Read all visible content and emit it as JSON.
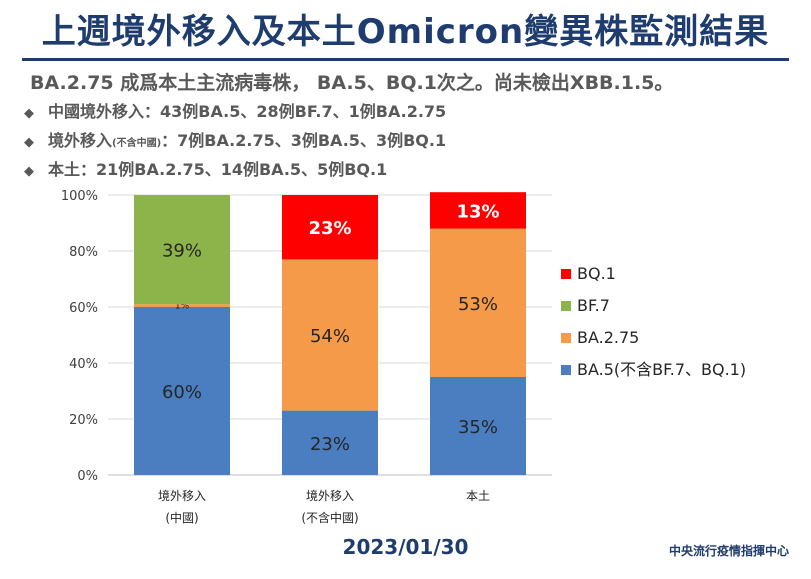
{
  "header": {
    "title": "上週境外移入及本土Omicron變異株監測結果",
    "summary": "BA.2.75 成爲本土主流病毒株， BA.5、BQ.1次之。尚未檢出XBB.1.5。"
  },
  "bullets": [
    {
      "marker": "◆",
      "label": "中國境外移入",
      "note": "",
      "text": "：43例BA.5、28例BF.7、1例BA.2.75"
    },
    {
      "marker": "◆",
      "label": "境外移入",
      "note": "(不含中國)",
      "text": "：7例BA.2.75、3例BA.5、3例BQ.1"
    },
    {
      "marker": "◆",
      "label": "本土",
      "note": "",
      "text": "：21例BA.2.75、14例BA.5、5例BQ.1"
    }
  ],
  "footer": {
    "date": "2023/01/30",
    "organization": "中央流行疫情指揮中心"
  },
  "chart_data": {
    "type": "bar",
    "stacked": true,
    "categories": [
      [
        "境外移入",
        "(中國)"
      ],
      [
        "境外移入",
        "(不含中國)"
      ],
      [
        "本土"
      ]
    ],
    "series": [
      {
        "name": "BA.5(不含BF.7、BQ.1)",
        "color": "#4a7ec1",
        "values": [
          60,
          23,
          35
        ],
        "labels": [
          "60%",
          "23%",
          "35%"
        ]
      },
      {
        "name": "BA.2.75",
        "color": "#f59a48",
        "values": [
          1,
          54,
          53
        ],
        "labels": [
          "1%",
          "54%",
          "53%"
        ]
      },
      {
        "name": "BF.7",
        "color": "#8db44a",
        "values": [
          39,
          0,
          0
        ],
        "labels": [
          "39%",
          "",
          ""
        ]
      },
      {
        "name": "BQ.1",
        "color": "#ff0000",
        "values": [
          0,
          23,
          13
        ],
        "labels": [
          "",
          "23%",
          "13%"
        ]
      }
    ],
    "legend_order": [
      "BQ.1",
      "BF.7",
      "BA.2.75",
      "BA.5(不含BF.7、BQ.1)"
    ],
    "legend_position": "right",
    "yticks": [
      "0%",
      "20%",
      "40%",
      "60%",
      "80%",
      "100%"
    ],
    "ylim": [
      0,
      100
    ],
    "grid": true
  }
}
